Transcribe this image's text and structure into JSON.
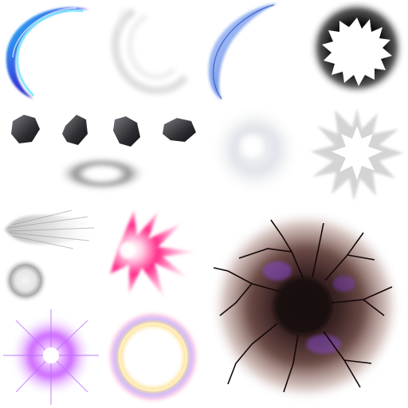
{
  "sheet": {
    "kind": "effect-texture-atlas",
    "background": "#ffffff",
    "sprites": [
      {
        "name": "blue-slash-arc-sprite",
        "accent": "#2f3bd9",
        "secondary": "#27c6ff"
      },
      {
        "name": "white-smoke-swirl-sprite",
        "accent": "#e6e6e6"
      },
      {
        "name": "light-blue-slash-arc-sprite",
        "accent": "#6f94e8"
      },
      {
        "name": "black-burst-ring-sprite",
        "accent": "#111111"
      },
      {
        "name": "rock-debris-sprite",
        "accent": "#3a3a3e",
        "count": 4
      },
      {
        "name": "gray-lens-smoke-sprite",
        "accent": "#8e8e8e"
      },
      {
        "name": "white-dust-puff-sprite",
        "accent": "#e7eaee"
      },
      {
        "name": "white-star-burst-sprite",
        "accent": "#dcdcdc"
      },
      {
        "name": "gray-speed-streak-sprite",
        "accent": "#cfcfcf"
      },
      {
        "name": "pink-impact-spark-sprite",
        "accent": "#ff2d8a"
      },
      {
        "name": "gray-glow-ring-sprite",
        "accent": "#bdbdbd"
      },
      {
        "name": "purple-star-flash-sprite",
        "accent": "#c44dff"
      },
      {
        "name": "rainbow-halo-ring-sprite",
        "accent": "#ffe08a",
        "secondary": "#c8b8ff"
      },
      {
        "name": "cracked-crater-decal-sprite",
        "accent": "#3b2424",
        "secondary": "#8a4bd1"
      }
    ]
  }
}
